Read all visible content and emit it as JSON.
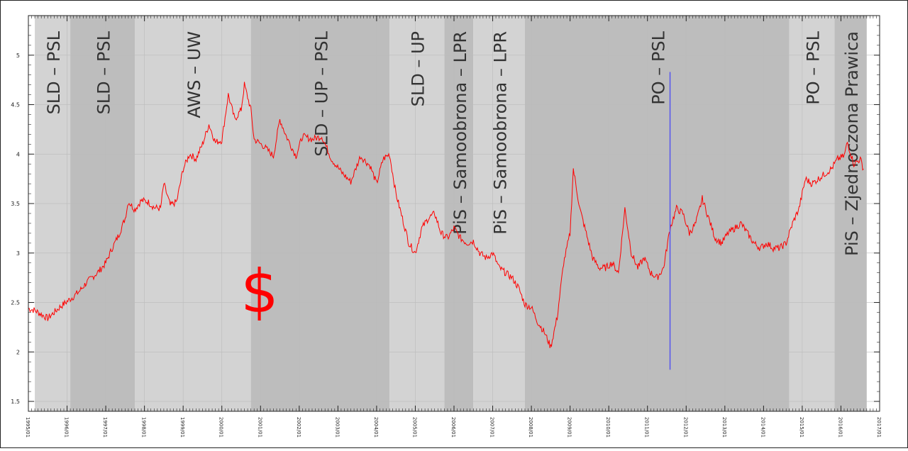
{
  "chart_data": {
    "type": "line",
    "title": "",
    "xlabel": "",
    "ylabel": "",
    "xlim": [
      "1995/01",
      "2017/01"
    ],
    "ylim": [
      1.4,
      5.4
    ],
    "grid": true,
    "y_ticks": [
      1.5,
      2,
      2.5,
      3,
      3.5,
      4,
      4.5,
      5
    ],
    "y_tick_labels": [
      "1.5",
      "2",
      "2.5",
      "3",
      "3.5",
      "4",
      "4.5",
      "5"
    ],
    "x_ticks": [
      "1995/01",
      "1996/01",
      "1997/01",
      "1998/01",
      "1999/01",
      "2000/01",
      "2001/01",
      "2002/01",
      "2003/01",
      "2004/01",
      "2005/01",
      "2006/01",
      "2007/01",
      "2008/01",
      "2009/01",
      "2010/01",
      "2011/01",
      "2012/01",
      "2013/01",
      "2014/01",
      "2015/01",
      "2016/01",
      "2017/01"
    ],
    "line_color": "#ff0000",
    "marker_line_color": "#5555ee",
    "symbol": "$",
    "symbol_color": "#ff0000",
    "government_periods": [
      {
        "label": "SLD – PSL",
        "start": "1995/03",
        "end": "1996/02",
        "shade": "#d3d3d3"
      },
      {
        "label": "SLD – PSL",
        "start": "1996/02",
        "end": "1997/10",
        "shade": "#bdbdbd"
      },
      {
        "label": "AWS – UW",
        "start": "1997/10",
        "end": "2000/10",
        "shade": "#d3d3d3"
      },
      {
        "label": "SLD – UP – PSL",
        "start": "2000/10",
        "end": "2004/05",
        "shade": "#bdbdbd"
      },
      {
        "label": "SLD – UP",
        "start": "2004/05",
        "end": "2005/10",
        "shade": "#d3d3d3"
      },
      {
        "label": "PiS – Samoobrona – LPR",
        "start": "2005/10",
        "end": "2006/07",
        "shade": "#bdbdbd"
      },
      {
        "label": "PiS – Samoobrona – LPR",
        "start": "2006/07",
        "end": "2007/11",
        "shade": "#d3d3d3"
      },
      {
        "label": "PO – PSL",
        "start": "2007/11",
        "end": "2014/09",
        "shade": "#bdbdbd"
      },
      {
        "label": "PO – PSL",
        "start": "2014/09",
        "end": "2015/11",
        "shade": "#d3d3d3"
      },
      {
        "label": "PiS – Zjednoczona Prawica",
        "start": "2015/11",
        "end": "2016/09",
        "shade": "#bdbdbd"
      }
    ],
    "marker_line": {
      "x": "2011/08",
      "y_from": 1.82,
      "y_to": 4.83
    },
    "series": [
      {
        "name": "",
        "points": [
          [
            "1995/01",
            2.44
          ],
          [
            "1995/03",
            2.42
          ],
          [
            "1995/05",
            2.38
          ],
          [
            "1995/07",
            2.34
          ],
          [
            "1995/09",
            2.4
          ],
          [
            "1995/11",
            2.46
          ],
          [
            "1996/01",
            2.51
          ],
          [
            "1996/03",
            2.56
          ],
          [
            "1996/05",
            2.62
          ],
          [
            "1996/07",
            2.7
          ],
          [
            "1996/09",
            2.76
          ],
          [
            "1996/11",
            2.82
          ],
          [
            "1997/01",
            2.9
          ],
          [
            "1997/03",
            3.05
          ],
          [
            "1997/05",
            3.18
          ],
          [
            "1997/07",
            3.35
          ],
          [
            "1997/08",
            3.52
          ],
          [
            "1997/10",
            3.44
          ],
          [
            "1997/12",
            3.53
          ],
          [
            "1998/02",
            3.52
          ],
          [
            "1998/04",
            3.46
          ],
          [
            "1998/06",
            3.45
          ],
          [
            "1998/07",
            3.7
          ],
          [
            "1998/09",
            3.48
          ],
          [
            "1998/11",
            3.52
          ],
          [
            "1999/01",
            3.85
          ],
          [
            "1999/03",
            4.0
          ],
          [
            "1999/05",
            3.95
          ],
          [
            "1999/07",
            4.1
          ],
          [
            "1999/09",
            4.3
          ],
          [
            "1999/11",
            4.12
          ],
          [
            "2000/01",
            4.14
          ],
          [
            "2000/03",
            4.6
          ],
          [
            "2000/05",
            4.35
          ],
          [
            "2000/07",
            4.45
          ],
          [
            "2000/08",
            4.7
          ],
          [
            "2000/10",
            4.45
          ],
          [
            "2000/11",
            4.15
          ],
          [
            "2001/02",
            4.08
          ],
          [
            "2001/05",
            3.98
          ],
          [
            "2001/07",
            4.35
          ],
          [
            "2001/09",
            4.18
          ],
          [
            "2001/12",
            3.98
          ],
          [
            "2002/02",
            4.18
          ],
          [
            "2002/05",
            4.15
          ],
          [
            "2002/08",
            4.18
          ],
          [
            "2002/11",
            3.95
          ],
          [
            "2003/02",
            3.82
          ],
          [
            "2003/05",
            3.72
          ],
          [
            "2003/08",
            3.98
          ],
          [
            "2003/11",
            3.88
          ],
          [
            "2004/01",
            3.7
          ],
          [
            "2004/03",
            3.95
          ],
          [
            "2004/05",
            4.0
          ],
          [
            "2004/07",
            3.6
          ],
          [
            "2004/09",
            3.35
          ],
          [
            "2004/11",
            3.1
          ],
          [
            "2005/01",
            3.0
          ],
          [
            "2005/03",
            3.25
          ],
          [
            "2005/05",
            3.35
          ],
          [
            "2005/07",
            3.4
          ],
          [
            "2005/09",
            3.2
          ],
          [
            "2005/11",
            3.15
          ],
          [
            "2006/01",
            3.25
          ],
          [
            "2006/03",
            3.15
          ],
          [
            "2006/05",
            3.1
          ],
          [
            "2006/07",
            3.12
          ],
          [
            "2006/09",
            3.0
          ],
          [
            "2006/11",
            2.95
          ],
          [
            "2007/01",
            3.0
          ],
          [
            "2007/03",
            2.85
          ],
          [
            "2007/05",
            2.8
          ],
          [
            "2007/07",
            2.75
          ],
          [
            "2007/09",
            2.65
          ],
          [
            "2007/11",
            2.48
          ],
          [
            "2008/01",
            2.45
          ],
          [
            "2008/03",
            2.3
          ],
          [
            "2008/05",
            2.2
          ],
          [
            "2008/07",
            2.05
          ],
          [
            "2008/09",
            2.35
          ],
          [
            "2008/11",
            2.9
          ],
          [
            "2009/01",
            3.2
          ],
          [
            "2009/02",
            3.85
          ],
          [
            "2009/04",
            3.45
          ],
          [
            "2009/06",
            3.2
          ],
          [
            "2009/08",
            2.95
          ],
          [
            "2009/10",
            2.85
          ],
          [
            "2009/12",
            2.85
          ],
          [
            "2010/02",
            2.9
          ],
          [
            "2010/04",
            2.8
          ],
          [
            "2010/06",
            3.45
          ],
          [
            "2010/08",
            3.0
          ],
          [
            "2010/10",
            2.85
          ],
          [
            "2010/12",
            2.95
          ],
          [
            "2011/02",
            2.8
          ],
          [
            "2011/04",
            2.75
          ],
          [
            "2011/06",
            2.85
          ],
          [
            "2011/08",
            3.25
          ],
          [
            "2011/10",
            3.45
          ],
          [
            "2011/12",
            3.4
          ],
          [
            "2012/02",
            3.2
          ],
          [
            "2012/04",
            3.3
          ],
          [
            "2012/06",
            3.55
          ],
          [
            "2012/08",
            3.35
          ],
          [
            "2012/10",
            3.15
          ],
          [
            "2012/12",
            3.1
          ],
          [
            "2013/02",
            3.2
          ],
          [
            "2013/04",
            3.25
          ],
          [
            "2013/06",
            3.3
          ],
          [
            "2013/08",
            3.2
          ],
          [
            "2013/10",
            3.1
          ],
          [
            "2013/12",
            3.05
          ],
          [
            "2014/02",
            3.1
          ],
          [
            "2014/04",
            3.05
          ],
          [
            "2014/06",
            3.05
          ],
          [
            "2014/08",
            3.1
          ],
          [
            "2014/10",
            3.3
          ],
          [
            "2014/12",
            3.45
          ],
          [
            "2015/02",
            3.75
          ],
          [
            "2015/04",
            3.7
          ],
          [
            "2015/06",
            3.75
          ],
          [
            "2015/08",
            3.8
          ],
          [
            "2015/10",
            3.85
          ],
          [
            "2015/12",
            3.95
          ],
          [
            "2016/02",
            3.98
          ],
          [
            "2016/03",
            4.12
          ],
          [
            "2016/05",
            3.9
          ],
          [
            "2016/07",
            3.95
          ],
          [
            "2016/08",
            3.85
          ]
        ]
      }
    ]
  }
}
